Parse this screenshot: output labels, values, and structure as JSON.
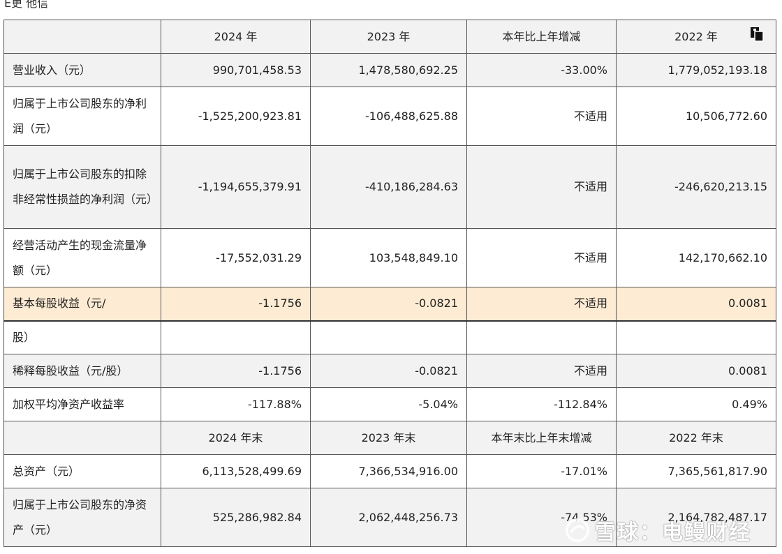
{
  "top_text": "E更 他信",
  "table": {
    "header": [
      "",
      "2024 年",
      "2023 年",
      "本年比上年增减",
      "2022 年"
    ],
    "rows": [
      {
        "label": "营业收入（元）",
        "v2024": "990,701,458.53",
        "v2023": "1,478,580,692.25",
        "change": "-33.00%",
        "v2022": "1,779,052,193.18"
      },
      {
        "label": "归属于上市公司股东的净利润（元）",
        "v2024": "-1,525,200,923.81",
        "v2023": "-106,488,625.88",
        "change": "不适用",
        "v2022": "10,506,772.60"
      },
      {
        "label": "归属于上市公司股东的扣除非经常性损益的净利润（元）",
        "v2024": "-1,194,655,379.91",
        "v2023": "-410,186,284.63",
        "change": "不适用",
        "v2022": "-246,620,213.15"
      },
      {
        "label": "经营活动产生的现金流量净额（元）",
        "v2024": "-17,552,031.29",
        "v2023": "103,548,849.10",
        "change": "不适用",
        "v2022": "142,170,662.10"
      },
      {
        "label": "基本每股收益（元/",
        "v2024": "-1.1756",
        "v2023": "-0.0821",
        "change": "不适用",
        "v2022": "0.0081"
      },
      {
        "label": "股）",
        "v2024": "",
        "v2023": "",
        "change": "",
        "v2022": ""
      },
      {
        "label": "稀释每股收益（元/股）",
        "v2024": "-1.1756",
        "v2023": "-0.0821",
        "change": "不适用",
        "v2022": "0.0081"
      },
      {
        "label": "加权平均净资产收益率",
        "v2024": "-117.88%",
        "v2023": "-5.04%",
        "change": "-112.84%",
        "v2022": "0.49%"
      }
    ],
    "header2": [
      "",
      "2024 年末",
      "2023 年末",
      "本年末比上年末增减",
      "2022 年末"
    ],
    "rows2": [
      {
        "label": "总资产（元）",
        "v2024": "6,113,528,499.69",
        "v2023": "7,366,534,916.00",
        "change": "-17.01%",
        "v2022": "7,365,561,817.90"
      },
      {
        "label": "归属于上市公司股东的净资产（元）",
        "v2024": "525,286,982.84",
        "v2023": "2,062,448,256.73",
        "change": "-74.53%",
        "v2022": "2,164,782,487.17"
      }
    ]
  },
  "watermark": {
    "text": "雪球：电鳗财经"
  },
  "icons": {
    "copy": "copy-icon",
    "watermark_logo": "snowball-logo-icon"
  },
  "colors": {
    "header_bg": "#f2f2f2",
    "highlight_bg": "#fdebd3",
    "border": "#555555"
  }
}
